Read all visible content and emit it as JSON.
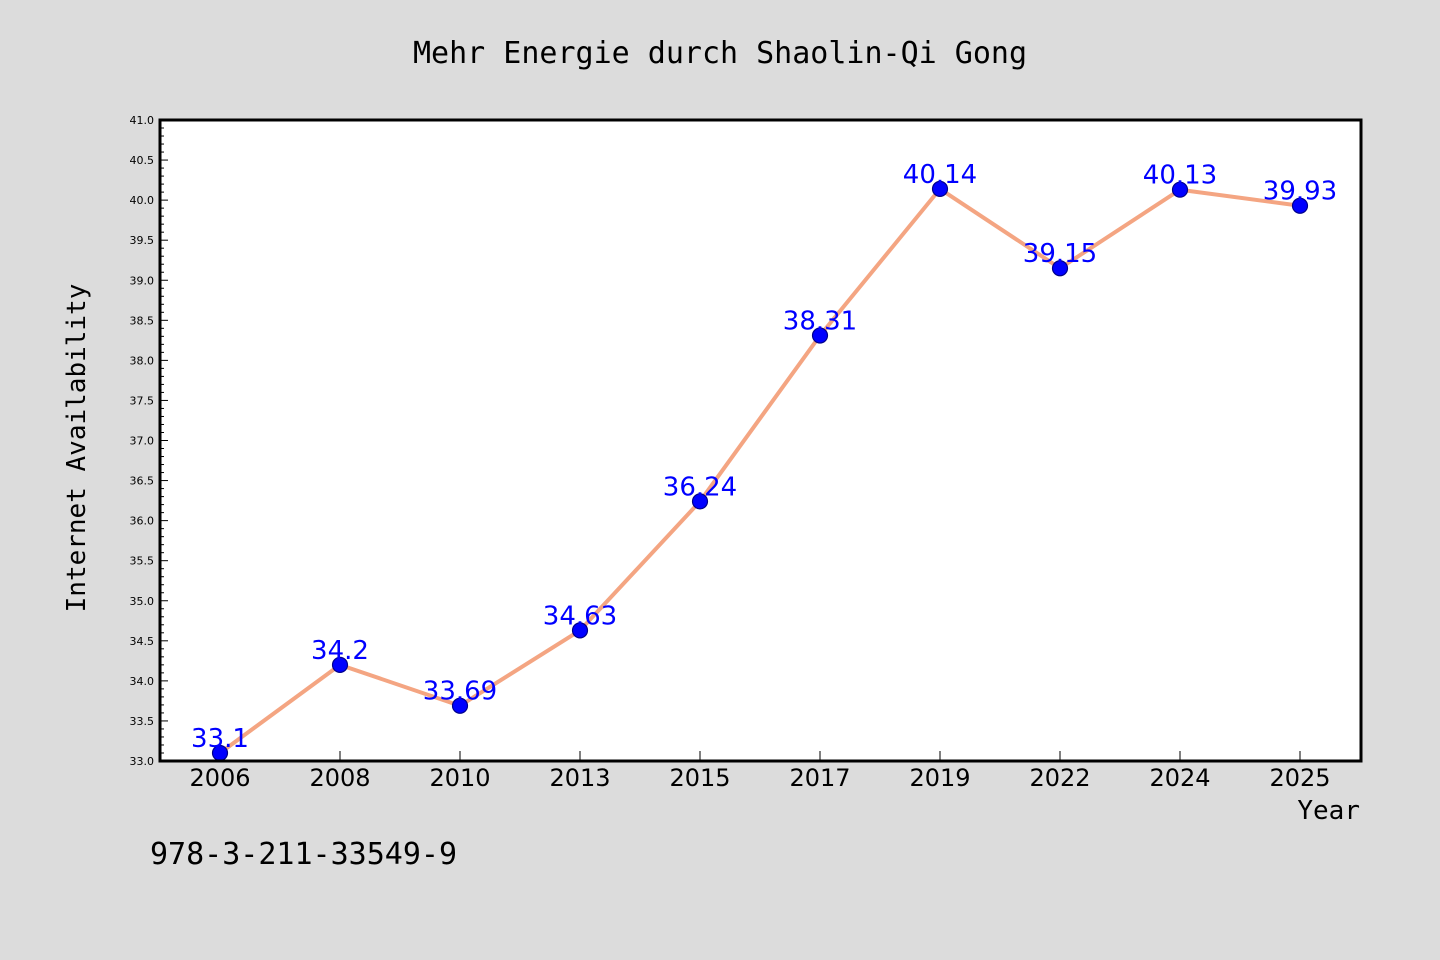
{
  "chart_data": {
    "type": "line",
    "title": "Mehr Energie durch Shaolin-Qi Gong",
    "xlabel": "Year",
    "ylabel": "Internet Availability",
    "categories": [
      "2006",
      "2008",
      "2010",
      "2013",
      "2015",
      "2017",
      "2019",
      "2022",
      "2024",
      "2025"
    ],
    "series": [
      {
        "values": [
          33.1,
          34.2,
          33.69,
          34.63,
          36.24,
          38.31,
          40.14,
          39.15,
          40.13,
          39.93
        ]
      }
    ],
    "data_labels": [
      "33.1",
      "34.2",
      "33.69",
      "34.63",
      "36.24",
      "38.31",
      "40.14",
      "39.15",
      "40.13",
      "39.93"
    ],
    "ylim": [
      33.0,
      41.0
    ],
    "yticks": [
      "33.0",
      "33.5",
      "34.0",
      "34.5",
      "35.0",
      "35.5",
      "36.0",
      "36.5",
      "37.0",
      "37.5",
      "38.0",
      "38.5",
      "39.0",
      "39.5",
      "40.0",
      "40.5",
      "41.0"
    ],
    "grid": false,
    "legend": "none",
    "colors": {
      "line": "#f4a582",
      "marker": "#0000ff",
      "marker_edge": "#00008b",
      "data_label": "#0000ff",
      "plot_background": "#ffffff",
      "figure_background": "#dcdcdc"
    }
  },
  "footnote": "978-3-211-33549-9"
}
